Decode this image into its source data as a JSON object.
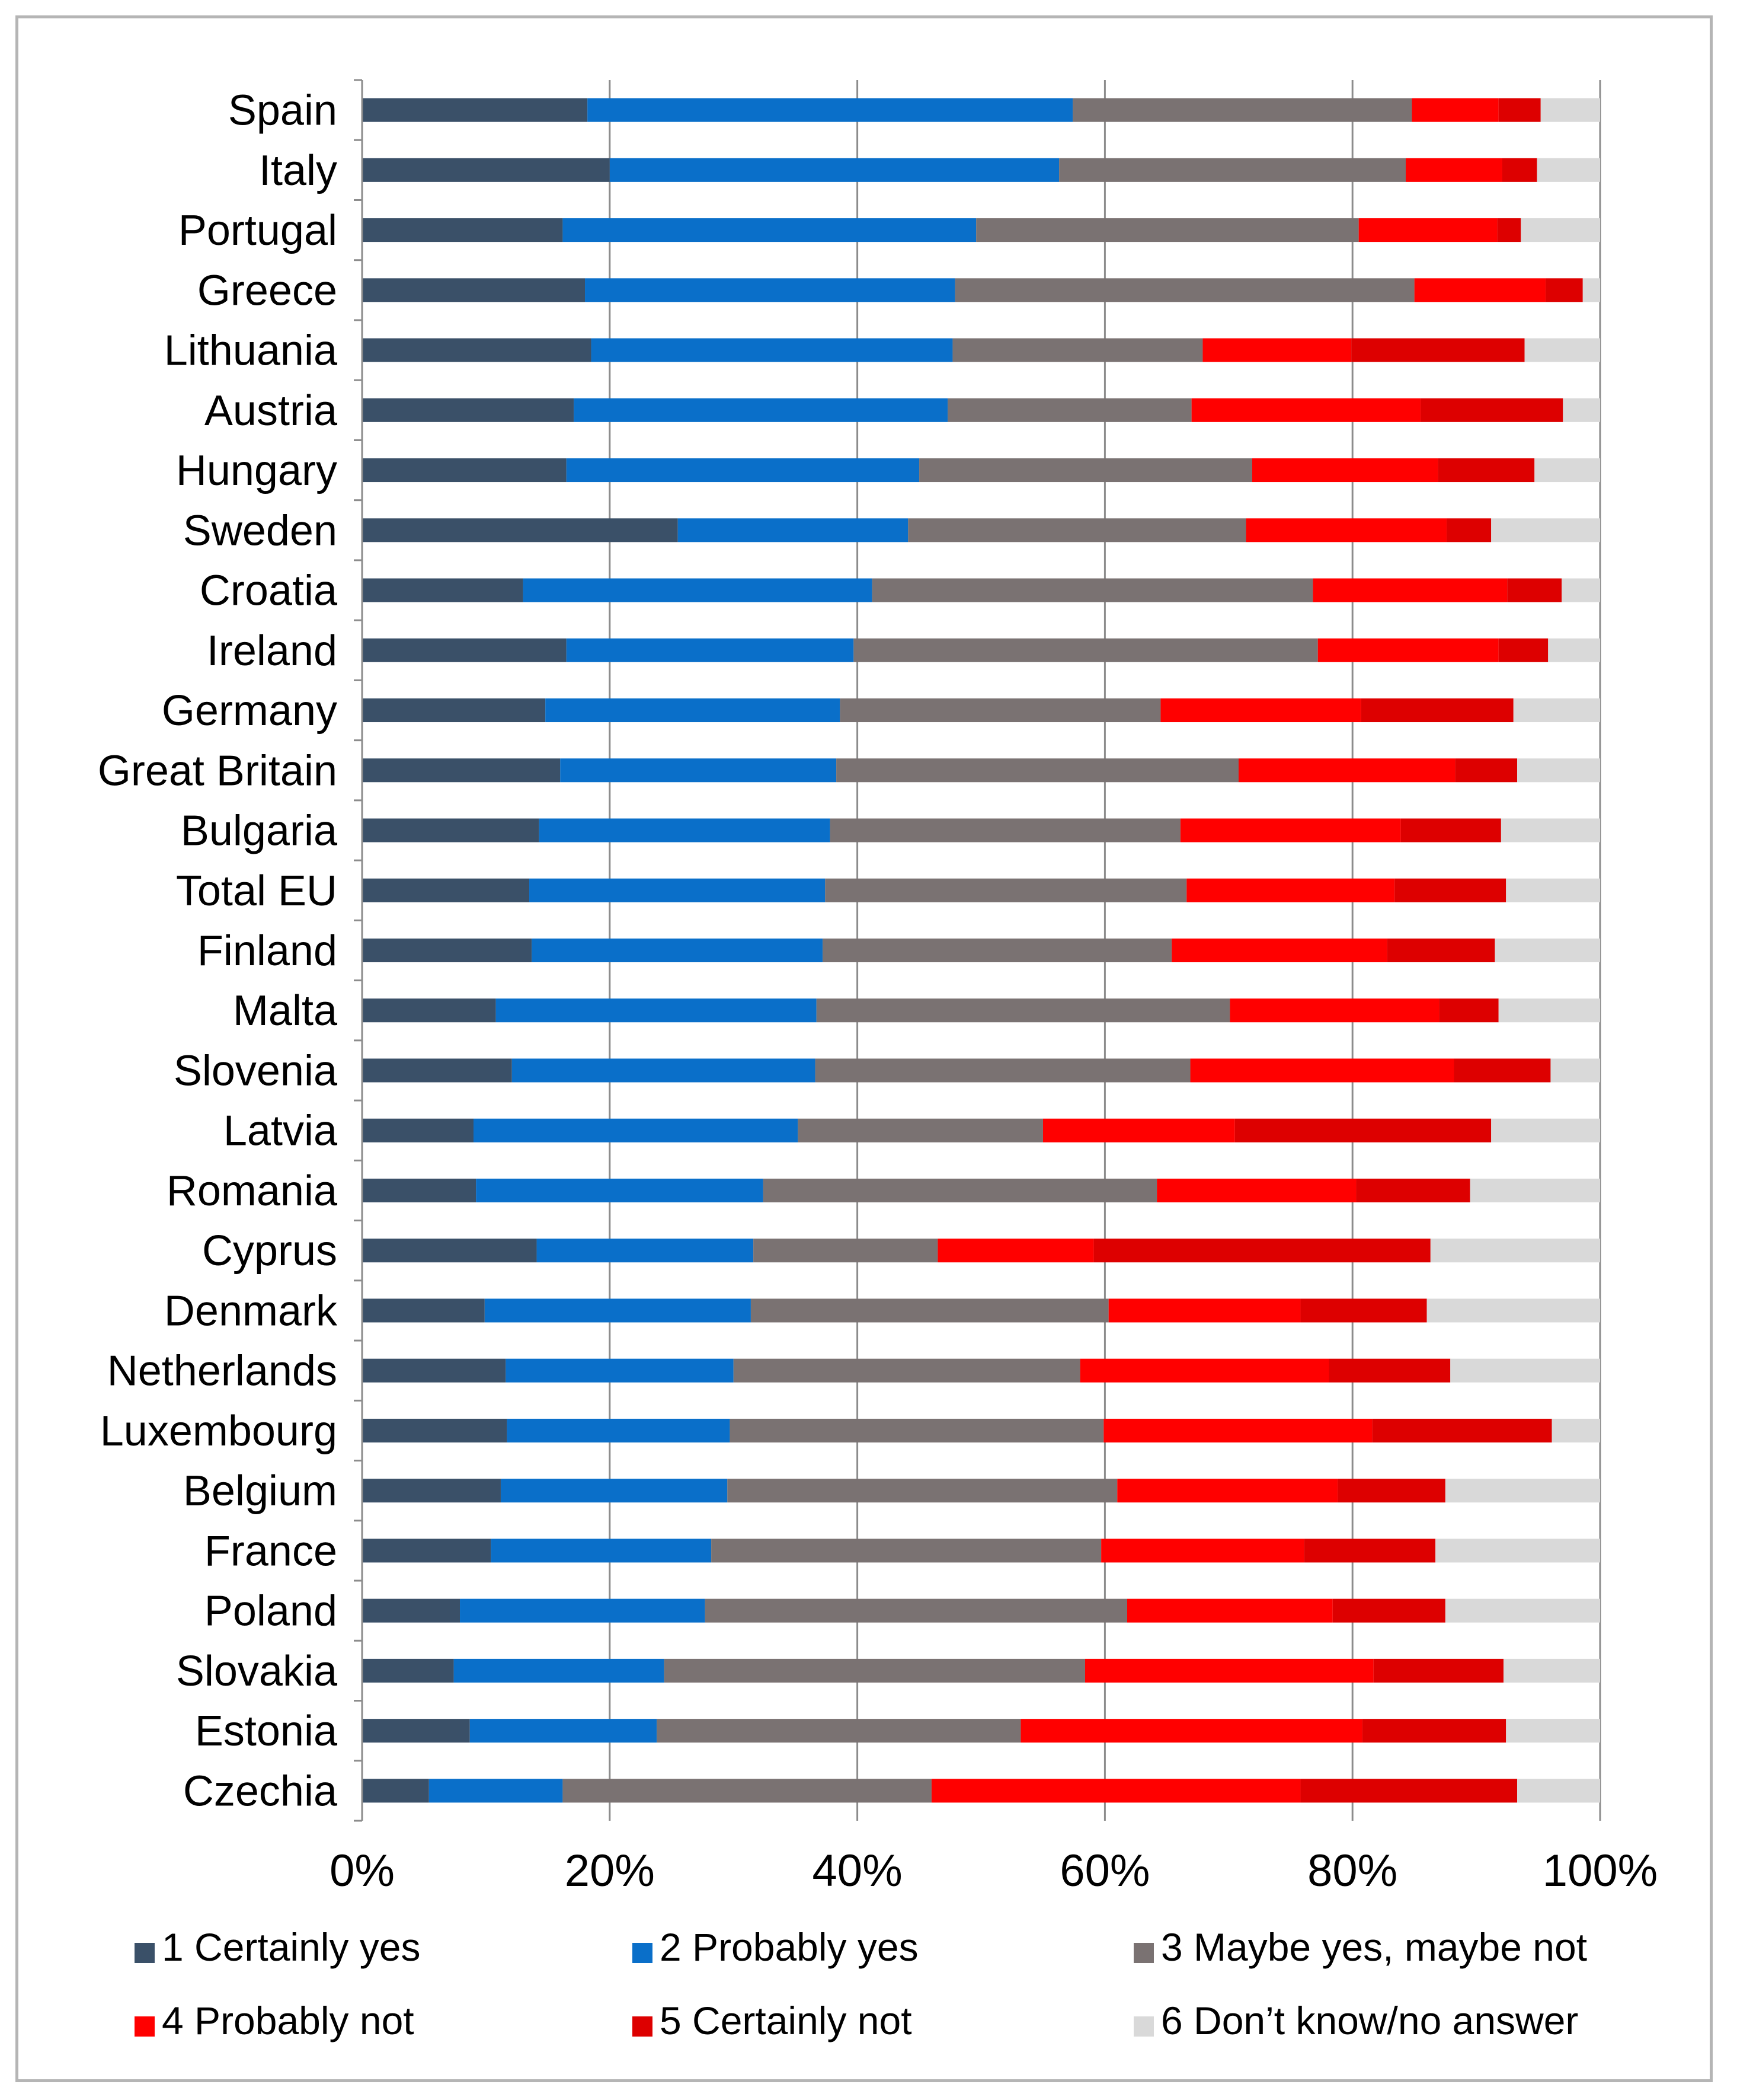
{
  "chart_data": {
    "type": "bar",
    "orientation": "horizontal",
    "stacked": true,
    "percent_scale": true,
    "title": "",
    "xlabel": "",
    "ylabel": "",
    "xlim": [
      0,
      100
    ],
    "x_ticks": [
      0,
      20,
      40,
      60,
      80,
      100
    ],
    "x_tick_labels": [
      "0%",
      "20%",
      "40%",
      "60%",
      "80%",
      "100%"
    ],
    "grid": true,
    "legend_position": "bottom",
    "categories": [
      "Spain",
      "Italy",
      "Portugal",
      "Greece",
      "Lithuania",
      "Austria",
      "Hungary",
      "Sweden",
      "Croatia",
      "Ireland",
      "Germany",
      "Great Britain",
      "Bulgaria",
      "Total EU",
      "Finland",
      "Malta",
      "Slovenia",
      "Latvia",
      "Romania",
      "Cyprus",
      "Denmark",
      "Netherlands",
      "Luxembourg",
      "Belgium",
      "France",
      "Poland",
      "Slovakia",
      "Estonia",
      "Czechia"
    ],
    "series": [
      {
        "name": "1 Certainly yes",
        "color": "#3a5068",
        "values": [
          18.2,
          20.0,
          16.2,
          18.0,
          18.5,
          17.1,
          16.5,
          25.5,
          13.0,
          16.5,
          14.8,
          16.0,
          14.3,
          13.5,
          13.7,
          10.8,
          12.1,
          9.0,
          9.2,
          14.1,
          9.9,
          11.6,
          11.7,
          11.2,
          10.4,
          7.9,
          7.4,
          8.7,
          5.4
        ]
      },
      {
        "name": "2 Probably yes",
        "color": "#0a6fc9",
        "values": [
          39.2,
          36.3,
          33.4,
          29.9,
          29.2,
          30.2,
          28.5,
          18.6,
          28.2,
          23.2,
          23.8,
          22.3,
          23.5,
          23.9,
          23.5,
          25.9,
          24.5,
          26.2,
          23.2,
          17.5,
          21.5,
          18.4,
          18.0,
          18.3,
          17.8,
          19.8,
          17.0,
          15.1,
          10.8
        ]
      },
      {
        "name": "3 Maybe yes, maybe not",
        "color": "#7a7272",
        "values": [
          27.4,
          28.0,
          30.9,
          37.1,
          20.2,
          19.7,
          26.9,
          27.3,
          35.6,
          37.5,
          25.9,
          32.5,
          28.3,
          29.2,
          28.2,
          33.4,
          30.3,
          19.8,
          31.8,
          14.9,
          28.9,
          28.0,
          30.2,
          31.5,
          31.5,
          34.1,
          34.0,
          29.4,
          29.8
        ]
      },
      {
        "name": "4 Probably not",
        "color": "#ff0000",
        "values": [
          7.0,
          7.8,
          11.2,
          10.6,
          12.0,
          18.5,
          15.0,
          16.2,
          15.7,
          14.6,
          16.2,
          17.5,
          17.8,
          16.8,
          17.4,
          16.9,
          21.3,
          15.5,
          16.1,
          12.6,
          15.5,
          20.1,
          21.7,
          17.8,
          16.4,
          16.6,
          23.3,
          27.6,
          29.8
        ]
      },
      {
        "name": "5 Certainly not",
        "color": "#dd0000",
        "values": [
          3.4,
          2.8,
          1.9,
          3.0,
          14.0,
          11.5,
          7.8,
          3.6,
          4.4,
          4.0,
          12.3,
          5.0,
          8.1,
          9.0,
          8.7,
          4.8,
          7.8,
          20.7,
          9.2,
          27.2,
          10.2,
          9.8,
          14.5,
          8.7,
          10.6,
          9.1,
          10.5,
          11.6,
          17.5
        ]
      },
      {
        "name": "6 Don’t know/no answer",
        "color": "#d9d9d9",
        "values": [
          4.8,
          5.1,
          6.4,
          1.4,
          6.1,
          3.0,
          5.3,
          8.8,
          3.1,
          4.2,
          7.0,
          6.7,
          8.0,
          7.6,
          8.5,
          8.2,
          4.0,
          8.8,
          10.5,
          13.7,
          14.0,
          12.1,
          3.9,
          12.5,
          13.3,
          12.5,
          7.8,
          7.6,
          6.7
        ]
      }
    ]
  }
}
